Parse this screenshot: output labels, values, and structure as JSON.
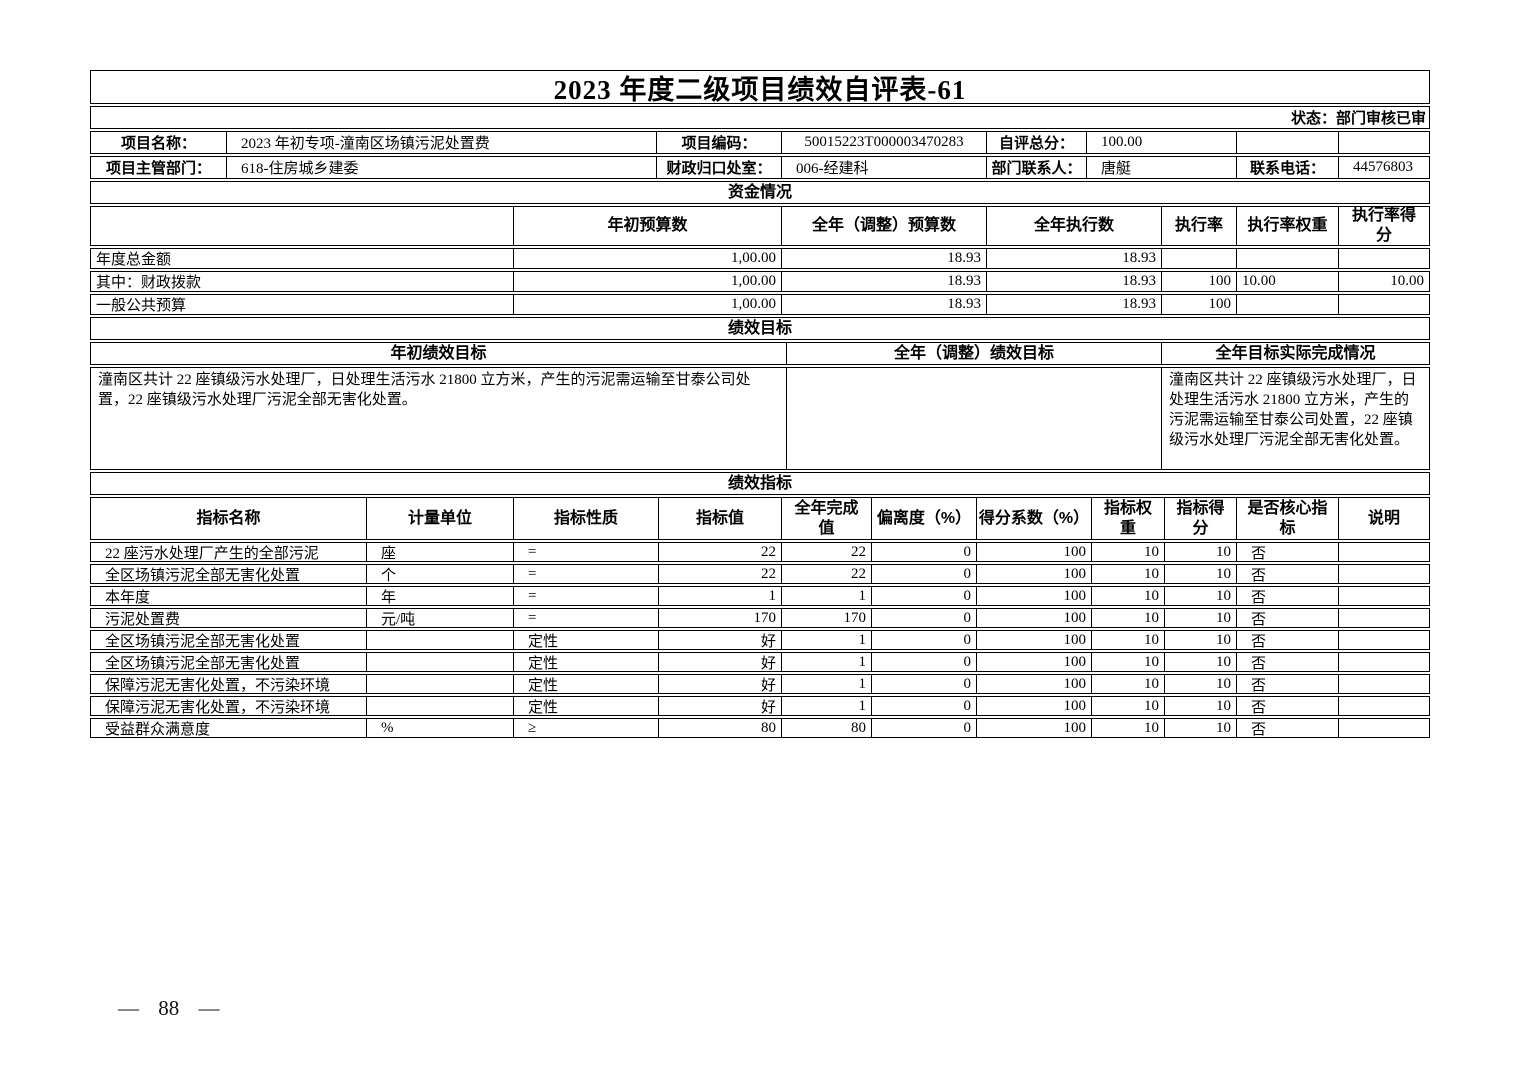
{
  "page": {
    "title": "2023 年度二级项目绩效自评表-61",
    "status": "状态：部门审核已审",
    "page_number": "— 88 —"
  },
  "info": {
    "row1": {
      "name_label": "项目名称：",
      "name_value": "2023 年初专项-潼南区场镇污泥处置费",
      "code_label": "项目编码：",
      "code_value": "50015223T000003470283",
      "score_label": "自评总分：",
      "score_value": "100.00",
      "extra_label": "",
      "extra_value": ""
    },
    "row2": {
      "dept_label": "项目主管部门：",
      "dept_value": "618-住房城乡建委",
      "office_label": "财政归口处室：",
      "office_value": "006-经建科",
      "contact_label": "部门联系人：",
      "contact_value": "唐艇",
      "phone_label": "联系电话：",
      "phone_value": "44576803"
    }
  },
  "funding": {
    "section_title": "资金情况",
    "headers": [
      "",
      "年初预算数",
      "全年（调整）预算数",
      "全年执行数",
      "执行率",
      "执行率权重",
      "执行率得分"
    ],
    "rows": [
      {
        "name": "年度总金额",
        "initial_budget": "1,00.00",
        "adjusted_budget": "18.93",
        "executed": "18.93",
        "exec_rate": "",
        "rate_weight": "",
        "rate_score": ""
      },
      {
        "name": "其中：财政拨款",
        "initial_budget": "1,00.00",
        "adjusted_budget": "18.93",
        "executed": "18.93",
        "exec_rate": "100",
        "rate_weight": "10.00",
        "rate_score": "10.00"
      },
      {
        "name": "一般公共预算",
        "initial_budget": "1,00.00",
        "adjusted_budget": "18.93",
        "executed": "18.93",
        "exec_rate": "100",
        "rate_weight": "",
        "rate_score": ""
      }
    ]
  },
  "goals": {
    "section_title": "绩效目标",
    "headers": [
      "年初绩效目标",
      "全年（调整）绩效目标",
      "全年目标实际完成情况"
    ],
    "initial_goal": "潼南区共计 22 座镇级污水处理厂，日处理生活污水 21800 立方米，产生的污泥需运输至甘泰公司处置，22 座镇级污水处理厂污泥全部无害化处置。",
    "adjusted_goal": "",
    "actual_completion": "潼南区共计 22 座镇级污水处理厂，日处理生活污水 21800 立方米，产生的污泥需运输至甘泰公司处置，22 座镇级污水处理厂污泥全部无害化处置。"
  },
  "indicators": {
    "section_title": "绩效指标",
    "headers": [
      "指标名称",
      "计量单位",
      "指标性质",
      "指标值",
      "全年完成值",
      "偏离度（%）",
      "得分系数（%）",
      "指标权重",
      "指标得分",
      "是否核心指标",
      "说明"
    ],
    "rows": [
      [
        "22 座污水处理厂产生的全部污泥",
        "座",
        "=",
        "22",
        "22",
        "0",
        "100",
        "10",
        "10",
        "否",
        ""
      ],
      [
        "全区场镇污泥全部无害化处置",
        "个",
        "=",
        "22",
        "22",
        "0",
        "100",
        "10",
        "10",
        "否",
        ""
      ],
      [
        "本年度",
        "年",
        "=",
        "1",
        "1",
        "0",
        "100",
        "10",
        "10",
        "否",
        ""
      ],
      [
        "污泥处置费",
        "元/吨",
        "=",
        "170",
        "170",
        "0",
        "100",
        "10",
        "10",
        "否",
        ""
      ],
      [
        "全区场镇污泥全部无害化处置",
        "",
        "定性",
        "好",
        "1",
        "0",
        "100",
        "10",
        "10",
        "否",
        ""
      ],
      [
        "全区场镇污泥全部无害化处置",
        "",
        "定性",
        "好",
        "1",
        "0",
        "100",
        "10",
        "10",
        "否",
        ""
      ],
      [
        "保障污泥无害化处置，不污染环境",
        "",
        "定性",
        "好",
        "1",
        "0",
        "100",
        "10",
        "10",
        "否",
        ""
      ],
      [
        "保障污泥无害化处置，不污染环境",
        "",
        "定性",
        "好",
        "1",
        "0",
        "100",
        "10",
        "10",
        "否",
        ""
      ],
      [
        "受益群众满意度",
        "%",
        "≥",
        "80",
        "80",
        "0",
        "100",
        "10",
        "10",
        "否",
        ""
      ]
    ]
  }
}
